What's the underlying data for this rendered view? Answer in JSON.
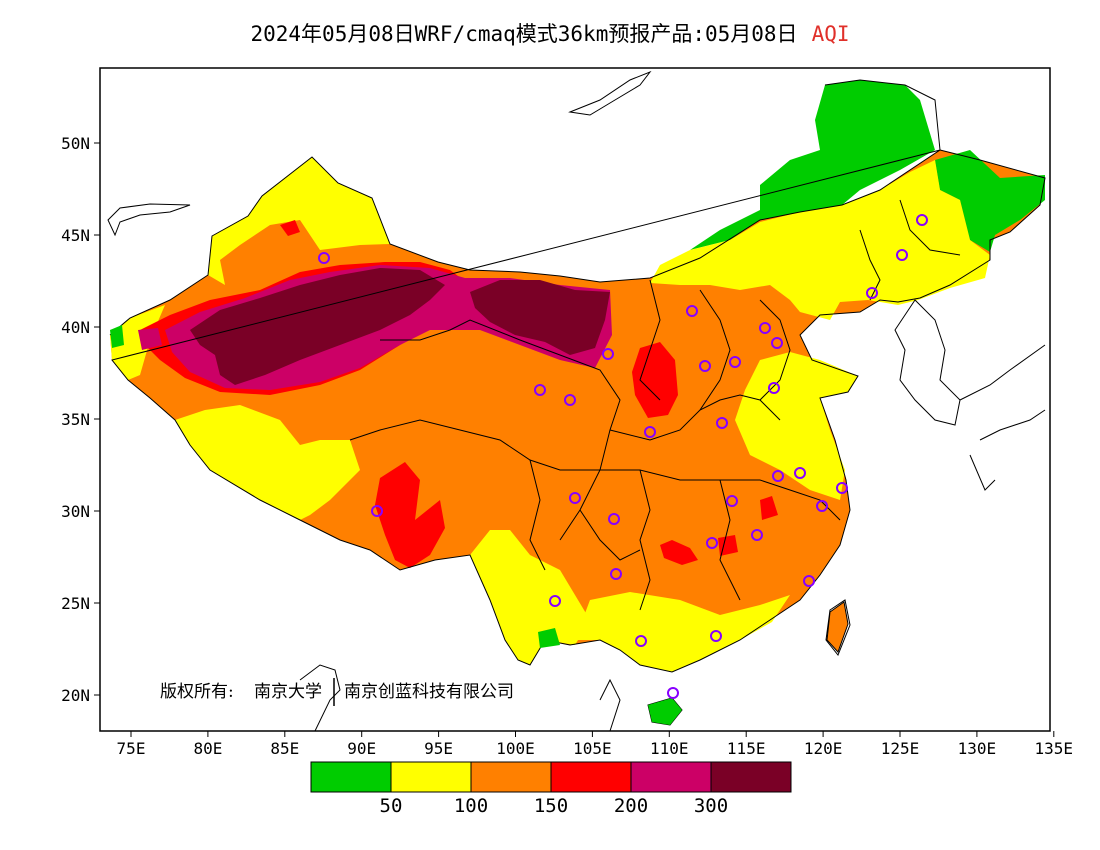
{
  "title": {
    "text": "2024年05月08日WRF/cmaq模式36km预报产品:05月08日",
    "metric": "AQI",
    "metric_color": "#e0302a"
  },
  "axes": {
    "lon_ticks": [
      "75E",
      "80E",
      "85E",
      "90E",
      "95E",
      "100E",
      "105E",
      "110E",
      "115E",
      "120E",
      "125E",
      "130E",
      "135E"
    ],
    "lat_ticks": [
      "50N",
      "45N",
      "40N",
      "35N",
      "30N",
      "25N",
      "20N"
    ],
    "lon_range": [
      73,
      135
    ],
    "lat_range": [
      18,
      54
    ]
  },
  "copyright": {
    "prefix": "版权所有:",
    "org1": "南京大学",
    "org2": "南京创蓝科技有限公司"
  },
  "legend": {
    "colors": [
      "#00cc00",
      "#ffff00",
      "#ff8000",
      "#ff0000",
      "#cc0066",
      "#7a0026"
    ],
    "labels": [
      "50",
      "100",
      "150",
      "200",
      "300"
    ]
  }
}
